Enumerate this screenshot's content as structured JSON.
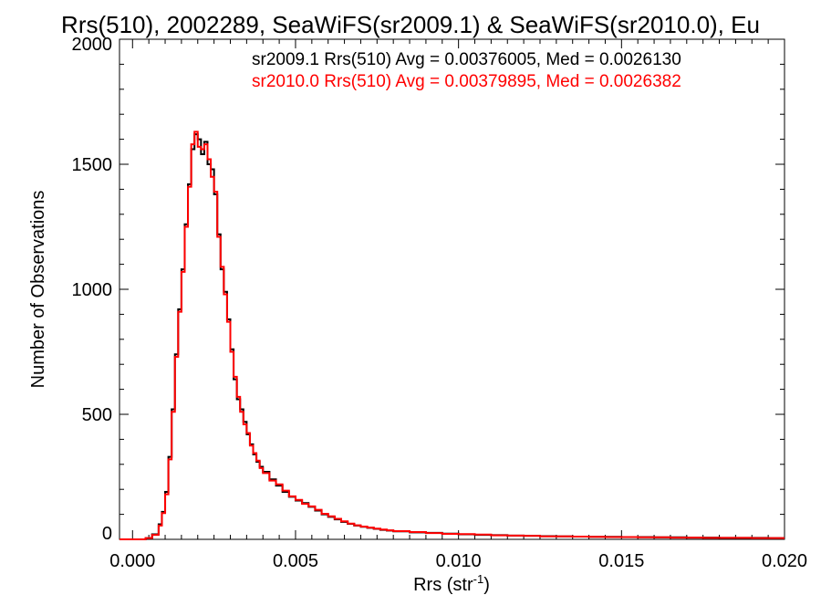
{
  "chart_data": {
    "type": "line",
    "style": "histogram-step",
    "title": "Rrs(510), 2002289, SeaWiFS(sr2009.1) & SeaWiFS(sr2010.0), Eu",
    "xlabel_base": "Rrs (str",
    "xlabel_sup": "-1",
    "xlabel_close": ")",
    "ylabel": "Number of Observations",
    "xlim": [
      -0.0004,
      0.02
    ],
    "ylim": [
      0,
      2000
    ],
    "xticks": [
      0.0,
      0.005,
      0.01,
      0.015,
      0.02
    ],
    "xtick_labels": [
      "0.000",
      "0.005",
      "0.010",
      "0.015",
      "0.020"
    ],
    "yticks": [
      0,
      500,
      1000,
      1500,
      2000
    ],
    "ytick_labels": [
      "0",
      "500",
      "1000",
      "1500",
      "2000"
    ],
    "grid": false,
    "legend_position": "top-right",
    "annotations": [
      "sr2009.1 Rrs(510) Avg = 0.00376005, Med = 0.0026130",
      "sr2010.0 Rrs(510) Avg = 0.00379895, Med = 0.0026382"
    ],
    "series": [
      {
        "color": "#000000",
        "x": [
          -0.0004,
          0.0,
          0.0004,
          0.0006,
          0.0008,
          0.0009,
          0.001,
          0.0011,
          0.0012,
          0.0013,
          0.0014,
          0.0015,
          0.0016,
          0.0017,
          0.0018,
          0.0019,
          0.002,
          0.0021,
          0.0022,
          0.0023,
          0.0024,
          0.0025,
          0.0026,
          0.0027,
          0.0028,
          0.0029,
          0.003,
          0.0031,
          0.0032,
          0.0033,
          0.0034,
          0.0035,
          0.0036,
          0.0037,
          0.0038,
          0.0039,
          0.004,
          0.0042,
          0.0044,
          0.0046,
          0.0048,
          0.005,
          0.0052,
          0.0054,
          0.0056,
          0.0058,
          0.006,
          0.0062,
          0.0064,
          0.0066,
          0.0068,
          0.007,
          0.0072,
          0.0074,
          0.0076,
          0.0078,
          0.008,
          0.0085,
          0.009,
          0.0095,
          0.01,
          0.0105,
          0.011,
          0.0115,
          0.012,
          0.0125,
          0.013,
          0.0135,
          0.014,
          0.0145,
          0.015,
          0.0155,
          0.016,
          0.0165,
          0.017,
          0.0175,
          0.018,
          0.0185,
          0.019,
          0.0195,
          0.02
        ],
        "y": [
          0,
          0,
          5,
          20,
          60,
          110,
          190,
          330,
          520,
          740,
          920,
          1080,
          1260,
          1420,
          1560,
          1620,
          1600,
          1540,
          1590,
          1500,
          1480,
          1380,
          1220,
          1080,
          990,
          880,
          760,
          640,
          560,
          520,
          470,
          420,
          380,
          340,
          310,
          290,
          270,
          240,
          215,
          190,
          170,
          155,
          145,
          130,
          115,
          100,
          90,
          80,
          70,
          62,
          55,
          50,
          46,
          42,
          38,
          35,
          32,
          28,
          26,
          23,
          20,
          18,
          17,
          15,
          14,
          13,
          12,
          11,
          10,
          10,
          9,
          9,
          8,
          8,
          7,
          7,
          6,
          6,
          6,
          5,
          5
        ]
      },
      {
        "color": "#ff0000",
        "x": [
          -0.0004,
          0.0,
          0.0004,
          0.0006,
          0.0008,
          0.0009,
          0.001,
          0.0011,
          0.0012,
          0.0013,
          0.0014,
          0.0015,
          0.0016,
          0.0017,
          0.0018,
          0.0019,
          0.002,
          0.0021,
          0.0022,
          0.0023,
          0.0024,
          0.0025,
          0.0026,
          0.0027,
          0.0028,
          0.0029,
          0.003,
          0.0031,
          0.0032,
          0.0033,
          0.0034,
          0.0035,
          0.0036,
          0.0037,
          0.0038,
          0.0039,
          0.004,
          0.0042,
          0.0044,
          0.0046,
          0.0048,
          0.005,
          0.0052,
          0.0054,
          0.0056,
          0.0058,
          0.006,
          0.0062,
          0.0064,
          0.0066,
          0.0068,
          0.007,
          0.0072,
          0.0074,
          0.0076,
          0.0078,
          0.008,
          0.0085,
          0.009,
          0.0095,
          0.01,
          0.0105,
          0.011,
          0.0115,
          0.012,
          0.0125,
          0.013,
          0.0135,
          0.014,
          0.0145,
          0.015,
          0.0155,
          0.016,
          0.0165,
          0.017,
          0.0175,
          0.018,
          0.0185,
          0.019,
          0.0195,
          0.02
        ],
        "y": [
          0,
          0,
          5,
          18,
          55,
          105,
          180,
          320,
          510,
          730,
          910,
          1070,
          1250,
          1410,
          1580,
          1630,
          1570,
          1560,
          1580,
          1520,
          1450,
          1390,
          1210,
          1090,
          980,
          870,
          750,
          650,
          570,
          510,
          460,
          425,
          375,
          345,
          315,
          285,
          265,
          235,
          220,
          195,
          172,
          158,
          142,
          132,
          118,
          102,
          92,
          82,
          72,
          63,
          56,
          51,
          47,
          43,
          39,
          36,
          33,
          29,
          25,
          22,
          21,
          19,
          16,
          15,
          14,
          12,
          12,
          11,
          10,
          9,
          9,
          8,
          8,
          7,
          7,
          6,
          6,
          6,
          5,
          5,
          5
        ]
      }
    ]
  }
}
